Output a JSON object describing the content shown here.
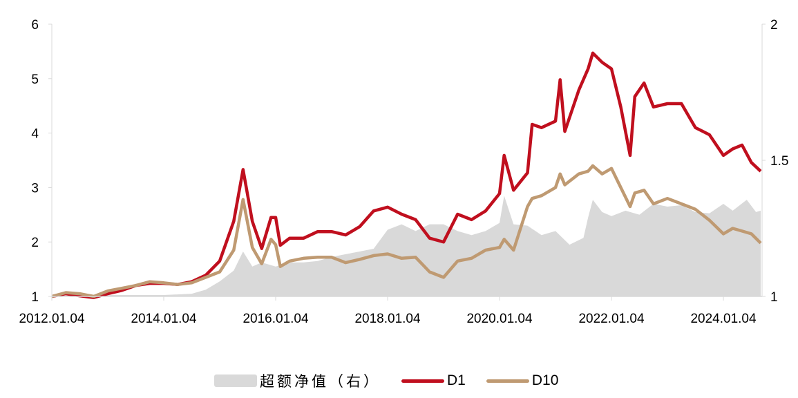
{
  "chart_data": {
    "type": "line",
    "title": "",
    "x_ticks": [
      "2012.01.04",
      "2014.01.04",
      "2016.01.04",
      "2018.01.04",
      "2020.01.04",
      "2022.01.04",
      "2024.01.04"
    ],
    "y_left": {
      "ticks": [
        "1",
        "2",
        "3",
        "4",
        "5",
        "6"
      ],
      "range": [
        1,
        6
      ]
    },
    "y_right": {
      "ticks": [
        "1",
        "1.5",
        "2"
      ],
      "range": [
        1,
        2
      ]
    },
    "grid": false,
    "legend_position": "bottom",
    "series": [
      {
        "name": "超额净值（右）",
        "type": "area",
        "axis": "right",
        "color": "#d9d9d9",
        "points": [
          [
            "2012-01",
            1.0
          ],
          [
            "2012-07",
            1.0
          ],
          [
            "2013-01",
            1.005
          ],
          [
            "2013-07",
            1.005
          ],
          [
            "2014-01",
            1.005
          ],
          [
            "2014-07",
            1.01
          ],
          [
            "2014-10",
            1.025
          ],
          [
            "2015-01",
            1.055
          ],
          [
            "2015-04",
            1.095
          ],
          [
            "2015-06",
            1.165
          ],
          [
            "2015-08",
            1.11
          ],
          [
            "2015-10",
            1.125
          ],
          [
            "2016-01",
            1.11
          ],
          [
            "2016-04",
            1.125
          ],
          [
            "2016-07",
            1.125
          ],
          [
            "2016-10",
            1.13
          ],
          [
            "2017-01",
            1.145
          ],
          [
            "2017-04",
            1.155
          ],
          [
            "2017-07",
            1.165
          ],
          [
            "2017-10",
            1.175
          ],
          [
            "2018-01",
            1.245
          ],
          [
            "2018-04",
            1.265
          ],
          [
            "2018-07",
            1.24
          ],
          [
            "2018-10",
            1.265
          ],
          [
            "2019-01",
            1.265
          ],
          [
            "2019-04",
            1.24
          ],
          [
            "2019-07",
            1.225
          ],
          [
            "2019-10",
            1.24
          ],
          [
            "2020-01",
            1.27
          ],
          [
            "2020-02",
            1.37
          ],
          [
            "2020-04",
            1.265
          ],
          [
            "2020-07",
            1.26
          ],
          [
            "2020-10",
            1.225
          ],
          [
            "2021-01",
            1.24
          ],
          [
            "2021-04",
            1.19
          ],
          [
            "2021-07",
            1.215
          ],
          [
            "2021-08",
            1.29
          ],
          [
            "2021-09",
            1.355
          ],
          [
            "2021-11",
            1.31
          ],
          [
            "2022-01",
            1.295
          ],
          [
            "2022-04",
            1.315
          ],
          [
            "2022-07",
            1.3
          ],
          [
            "2022-10",
            1.34
          ],
          [
            "2023-01",
            1.33
          ],
          [
            "2023-04",
            1.335
          ],
          [
            "2023-07",
            1.31
          ],
          [
            "2023-10",
            1.305
          ],
          [
            "2024-01",
            1.34
          ],
          [
            "2024-03",
            1.315
          ],
          [
            "2024-06",
            1.355
          ],
          [
            "2024-08",
            1.31
          ],
          [
            "2024-09",
            1.315
          ]
        ]
      },
      {
        "name": "D1",
        "type": "line",
        "axis": "left",
        "color": "#c00f1e",
        "points": [
          [
            "2012-01",
            1.0
          ],
          [
            "2012-04",
            1.05
          ],
          [
            "2012-07",
            1.01
          ],
          [
            "2012-10",
            0.98
          ],
          [
            "2013-01",
            1.05
          ],
          [
            "2013-04",
            1.11
          ],
          [
            "2013-07",
            1.2
          ],
          [
            "2013-10",
            1.24
          ],
          [
            "2014-01",
            1.24
          ],
          [
            "2014-04",
            1.22
          ],
          [
            "2014-07",
            1.27
          ],
          [
            "2014-10",
            1.39
          ],
          [
            "2015-01",
            1.65
          ],
          [
            "2015-04",
            2.38
          ],
          [
            "2015-06",
            3.33
          ],
          [
            "2015-08",
            2.38
          ],
          [
            "2015-10",
            1.88
          ],
          [
            "2015-12",
            2.45
          ],
          [
            "2016-01",
            2.45
          ],
          [
            "2016-02",
            1.94
          ],
          [
            "2016-04",
            2.07
          ],
          [
            "2016-07",
            2.07
          ],
          [
            "2016-10",
            2.19
          ],
          [
            "2017-01",
            2.19
          ],
          [
            "2017-04",
            2.13
          ],
          [
            "2017-07",
            2.28
          ],
          [
            "2017-10",
            2.57
          ],
          [
            "2018-01",
            2.64
          ],
          [
            "2018-04",
            2.51
          ],
          [
            "2018-07",
            2.41
          ],
          [
            "2018-10",
            2.07
          ],
          [
            "2019-01",
            2.0
          ],
          [
            "2019-04",
            2.51
          ],
          [
            "2019-07",
            2.41
          ],
          [
            "2019-10",
            2.57
          ],
          [
            "2020-01",
            2.89
          ],
          [
            "2020-02",
            3.59
          ],
          [
            "2020-04",
            2.95
          ],
          [
            "2020-07",
            3.27
          ],
          [
            "2020-08",
            4.16
          ],
          [
            "2020-10",
            4.1
          ],
          [
            "2021-01",
            4.22
          ],
          [
            "2021-02",
            4.98
          ],
          [
            "2021-03",
            4.03
          ],
          [
            "2021-06",
            4.79
          ],
          [
            "2021-08",
            5.18
          ],
          [
            "2021-09",
            5.47
          ],
          [
            "2021-11",
            5.3
          ],
          [
            "2022-01",
            5.18
          ],
          [
            "2022-03",
            4.48
          ],
          [
            "2022-05",
            3.59
          ],
          [
            "2022-06",
            4.67
          ],
          [
            "2022-08",
            4.92
          ],
          [
            "2022-10",
            4.48
          ],
          [
            "2023-01",
            4.54
          ],
          [
            "2023-04",
            4.54
          ],
          [
            "2023-07",
            4.1
          ],
          [
            "2023-10",
            3.97
          ],
          [
            "2024-01",
            3.59
          ],
          [
            "2024-03",
            3.71
          ],
          [
            "2024-05",
            3.78
          ],
          [
            "2024-07",
            3.46
          ],
          [
            "2024-09",
            3.3
          ]
        ]
      },
      {
        "name": "D10",
        "type": "line",
        "axis": "left",
        "color": "#bf9a72",
        "points": [
          [
            "2012-01",
            1.0
          ],
          [
            "2012-04",
            1.07
          ],
          [
            "2012-07",
            1.05
          ],
          [
            "2012-10",
            1.0
          ],
          [
            "2013-01",
            1.1
          ],
          [
            "2013-04",
            1.15
          ],
          [
            "2013-07",
            1.2
          ],
          [
            "2013-10",
            1.27
          ],
          [
            "2014-01",
            1.25
          ],
          [
            "2014-04",
            1.22
          ],
          [
            "2014-07",
            1.25
          ],
          [
            "2014-10",
            1.35
          ],
          [
            "2015-01",
            1.45
          ],
          [
            "2015-04",
            1.85
          ],
          [
            "2015-06",
            2.78
          ],
          [
            "2015-08",
            1.9
          ],
          [
            "2015-10",
            1.6
          ],
          [
            "2015-12",
            2.05
          ],
          [
            "2016-01",
            1.95
          ],
          [
            "2016-02",
            1.55
          ],
          [
            "2016-04",
            1.65
          ],
          [
            "2016-07",
            1.7
          ],
          [
            "2016-10",
            1.72
          ],
          [
            "2017-01",
            1.72
          ],
          [
            "2017-04",
            1.62
          ],
          [
            "2017-07",
            1.68
          ],
          [
            "2017-10",
            1.75
          ],
          [
            "2018-01",
            1.78
          ],
          [
            "2018-04",
            1.7
          ],
          [
            "2018-07",
            1.72
          ],
          [
            "2018-10",
            1.45
          ],
          [
            "2019-01",
            1.35
          ],
          [
            "2019-04",
            1.65
          ],
          [
            "2019-07",
            1.7
          ],
          [
            "2019-10",
            1.85
          ],
          [
            "2020-01",
            1.9
          ],
          [
            "2020-02",
            2.05
          ],
          [
            "2020-04",
            1.85
          ],
          [
            "2020-07",
            2.65
          ],
          [
            "2020-08",
            2.8
          ],
          [
            "2020-10",
            2.85
          ],
          [
            "2021-01",
            3.0
          ],
          [
            "2021-02",
            3.25
          ],
          [
            "2021-03",
            3.05
          ],
          [
            "2021-06",
            3.25
          ],
          [
            "2021-08",
            3.3
          ],
          [
            "2021-09",
            3.4
          ],
          [
            "2021-11",
            3.25
          ],
          [
            "2022-01",
            3.35
          ],
          [
            "2022-03",
            3.0
          ],
          [
            "2022-05",
            2.65
          ],
          [
            "2022-06",
            2.9
          ],
          [
            "2022-08",
            2.95
          ],
          [
            "2022-10",
            2.7
          ],
          [
            "2023-01",
            2.8
          ],
          [
            "2023-04",
            2.7
          ],
          [
            "2023-07",
            2.6
          ],
          [
            "2023-10",
            2.4
          ],
          [
            "2024-01",
            2.15
          ],
          [
            "2024-03",
            2.25
          ],
          [
            "2024-05",
            2.2
          ],
          [
            "2024-07",
            2.15
          ],
          [
            "2024-09",
            1.98
          ]
        ]
      }
    ]
  }
}
